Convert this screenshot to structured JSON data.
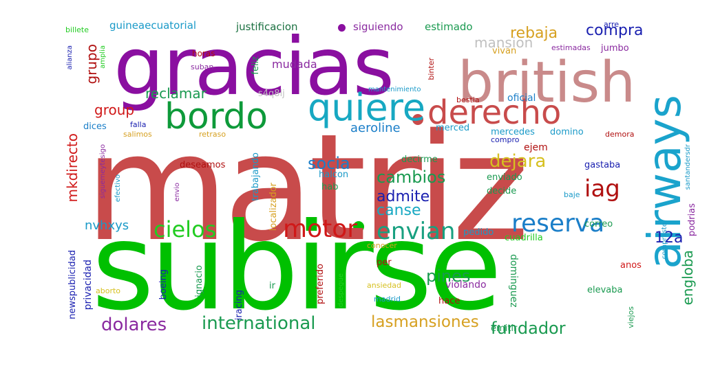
{
  "words": [
    {
      "text": "matriz",
      "color": "#c84b4b"
    },
    {
      "text": "subirse",
      "color": "#00c000"
    },
    {
      "text": "gracias",
      "color": "#8a0fa0"
    },
    {
      "text": "british",
      "color": "#c98a8a"
    },
    {
      "text": "airways",
      "color": "#1aa3cc"
    },
    {
      "text": "quiere",
      "color": "#17a8c2"
    },
    {
      "text": "bordo",
      "color": "#0e9a3a"
    },
    {
      "text": "derecho",
      "color": "#c84b4b"
    },
    {
      "text": "reserva",
      "color": "#1a7ec8"
    },
    {
      "text": "motor",
      "color": "#d01818"
    },
    {
      "text": "envian",
      "color": "#18a080"
    },
    {
      "text": "cielos",
      "color": "#22cc22"
    },
    {
      "text": "iag",
      "color": "#b01010"
    },
    {
      "text": "international",
      "color": "#1a9a50"
    },
    {
      "text": "lasmansiones",
      "color": "#d6a020"
    },
    {
      "text": "fundador",
      "color": "#1a9a50"
    },
    {
      "text": "dolares",
      "color": "#8a2aa0"
    },
    {
      "text": "cambios",
      "color": "#1a9a50"
    },
    {
      "text": "socia",
      "color": "#1a7ec8"
    },
    {
      "text": "dejara",
      "color": "#d6c020"
    },
    {
      "text": "admite",
      "color": "#1a20b0"
    },
    {
      "text": "canse",
      "color": "#17a8c2"
    },
    {
      "text": "pines",
      "color": "#1a9a50"
    },
    {
      "text": "12a",
      "color": "#1a20b0"
    },
    {
      "text": "engloba",
      "color": "#1a9a50"
    },
    {
      "text": "reclamar",
      "color": "#1a9a50"
    },
    {
      "text": "rebaja",
      "color": "#d6a020"
    },
    {
      "text": "compra",
      "color": "#1a20b0"
    },
    {
      "text": "mansion",
      "color": "#c0c0c0"
    },
    {
      "text": "group",
      "color": "#d01818"
    },
    {
      "text": "grupo",
      "color": "#b01010"
    },
    {
      "text": "mkdirecto",
      "color": "#d01818"
    },
    {
      "text": "aeroline",
      "color": "#1a7ec8"
    },
    {
      "text": "nvhxys",
      "color": "#1a9ac8"
    },
    {
      "text": "mudada",
      "color": "#8a2aa0"
    },
    {
      "text": "justificacion",
      "color": "#1a7040"
    },
    {
      "text": "siguiendo",
      "color": "#8a2aa0"
    },
    {
      "text": "estimado",
      "color": "#1a9a50"
    },
    {
      "text": "guineaecuatorial",
      "color": "#1a9ac8"
    },
    {
      "text": "billete",
      "color": "#22cc22"
    },
    {
      "text": "arre",
      "color": "#1a20b0"
    },
    {
      "text": "estimadas",
      "color": "#8a2aa0"
    },
    {
      "text": "jumbo",
      "color": "#8a2aa0"
    },
    {
      "text": "vivan",
      "color": "#d6a020"
    },
    {
      "text": "horas",
      "color": "#b01010"
    },
    {
      "text": "suban",
      "color": "#8a2aa0"
    },
    {
      "text": "s4q8lj",
      "color": "#c0c0c0"
    },
    {
      "text": "mantenimiento",
      "color": "#1a9ac8"
    },
    {
      "text": "bestia",
      "color": "#b01010"
    },
    {
      "text": "oficial",
      "color": "#1a7ec8"
    },
    {
      "text": "merced",
      "color": "#1a9ac8"
    },
    {
      "text": "mercedes",
      "color": "#1a9ac8"
    },
    {
      "text": "domino",
      "color": "#1a9ac8"
    },
    {
      "text": "demora",
      "color": "#b01010"
    },
    {
      "text": "compro",
      "color": "#1a20b0"
    },
    {
      "text": "ejem",
      "color": "#b01010"
    },
    {
      "text": "gastaba",
      "color": "#1a20b0"
    },
    {
      "text": "decirme",
      "color": "#1a9a50"
    },
    {
      "text": "halcon",
      "color": "#1a9ac8"
    },
    {
      "text": "hab",
      "color": "#1a9a50"
    },
    {
      "text": "enviado",
      "color": "#1a9a50"
    },
    {
      "text": "decide",
      "color": "#1a9a50"
    },
    {
      "text": "baje",
      "color": "#1a9ac8"
    },
    {
      "text": "correo",
      "color": "#1a9a50"
    },
    {
      "text": "podrias",
      "color": "#8a2aa0"
    },
    {
      "text": "pedido",
      "color": "#1a9ac8"
    },
    {
      "text": "cuadrilla",
      "color": "#22cc22"
    },
    {
      "text": "conocer",
      "color": "#d6a020"
    },
    {
      "text": "anos",
      "color": "#d01818"
    },
    {
      "text": "per",
      "color": "#b01010"
    },
    {
      "text": "violando",
      "color": "#8a2aa0"
    },
    {
      "text": "hace",
      "color": "#b01010"
    },
    {
      "text": "ansiedad",
      "color": "#d6c020"
    },
    {
      "text": "madrid",
      "color": "#1a9ac8"
    },
    {
      "text": "despegue",
      "color": "#22cc22"
    },
    {
      "text": "preferido",
      "color": "#b01010"
    },
    {
      "text": "ignacio",
      "color": "#1a9a50"
    },
    {
      "text": "iracing",
      "color": "#1a20b0"
    },
    {
      "text": "ir",
      "color": "#1a9a50"
    },
    {
      "text": "boeing",
      "color": "#1a20b0"
    },
    {
      "text": "aborto",
      "color": "#d6c020"
    },
    {
      "text": "dices",
      "color": "#1a7ec8"
    },
    {
      "text": "falla",
      "color": "#1a20b0"
    },
    {
      "text": "salimos",
      "color": "#d6a020"
    },
    {
      "text": "retraso",
      "color": "#d6a020"
    },
    {
      "text": "deseamos",
      "color": "#b01010"
    },
    {
      "text": "trabajando",
      "color": "#1a9ac8"
    },
    {
      "text": "localizador",
      "color": "#d6a020"
    },
    {
      "text": "envio",
      "color": "#8a2aa0"
    },
    {
      "text": "efectivo",
      "color": "#1a9ac8"
    },
    {
      "text": "siguemeytesigo",
      "color": "#8a2aa0"
    },
    {
      "text": "newspublicidad",
      "color": "#1a20b0"
    },
    {
      "text": "privacidad",
      "color": "#1a20b0"
    },
    {
      "text": "alianza",
      "color": "#1a20b0"
    },
    {
      "text": "amplia",
      "color": "#22cc22"
    },
    {
      "text": "feliz",
      "color": "#1a9a50"
    },
    {
      "text": "binter",
      "color": "#b01010"
    },
    {
      "text": "dominguez",
      "color": "#1a9a50"
    },
    {
      "text": "elevaba",
      "color": "#1a9a50"
    },
    {
      "text": "emitir",
      "color": "#1a9a50"
    },
    {
      "text": "viejos",
      "color": "#1a9a50"
    },
    {
      "text": "compraste",
      "color": "#1a9ac8"
    },
    {
      "text": "santandersdr",
      "color": "#1a9ac8"
    }
  ]
}
